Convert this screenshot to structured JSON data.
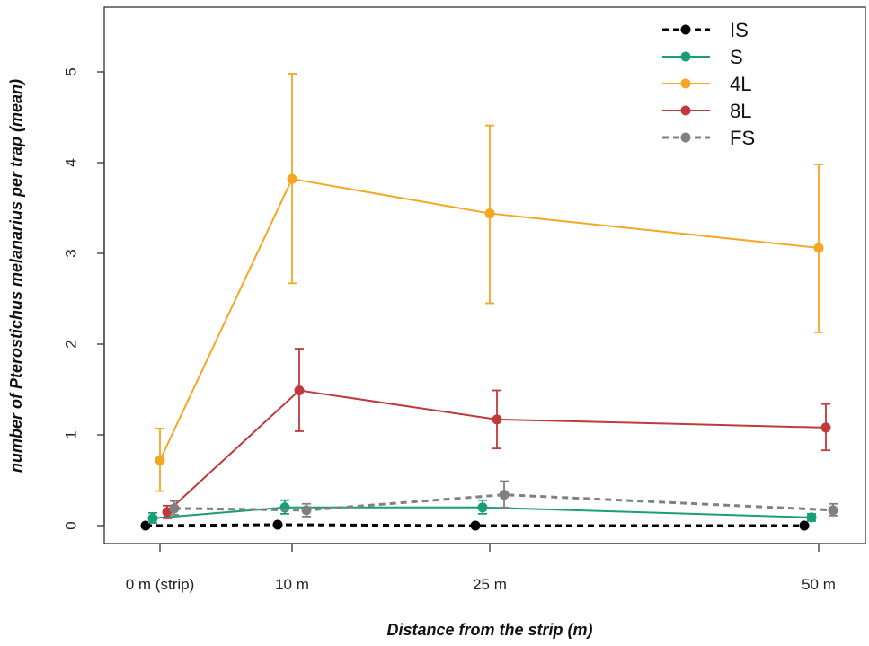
{
  "chart_data": {
    "type": "line",
    "title": "",
    "xlabel": "Distance from the strip (m)",
    "ylabel_parts": {
      "prefix": "number of ",
      "species": "Pterostichus melanarius",
      "suffix": " per trap (mean)"
    },
    "categories": [
      "0 m (strip)",
      "10 m",
      "25 m",
      "50 m"
    ],
    "ylim": [
      0,
      5.7
    ],
    "yticks": [
      0,
      1,
      2,
      3,
      4,
      5
    ],
    "grid": false,
    "legend_position": "top-right",
    "series": [
      {
        "name": "IS",
        "color": "#000000",
        "dashed": true,
        "values": [
          0.0,
          0.01,
          0.0,
          0.0
        ],
        "err_low": [
          null,
          null,
          null,
          null
        ],
        "err_high": [
          null,
          null,
          null,
          null
        ]
      },
      {
        "name": "S",
        "color": "#1a9e77",
        "dashed": false,
        "values": [
          0.08,
          0.2,
          0.2,
          0.09
        ],
        "err_low": [
          0.03,
          0.13,
          0.13,
          0.05
        ],
        "err_high": [
          0.14,
          0.28,
          0.28,
          0.13
        ]
      },
      {
        "name": "4L",
        "color": "#f5a623",
        "dashed": false,
        "values": [
          0.72,
          3.82,
          3.44,
          3.06
        ],
        "err_low": [
          0.38,
          2.67,
          2.45,
          2.13
        ],
        "err_high": [
          1.07,
          4.98,
          4.41,
          3.98
        ]
      },
      {
        "name": "8L",
        "color": "#c0393b",
        "dashed": false,
        "values": [
          0.15,
          1.49,
          1.17,
          1.08
        ],
        "err_low": [
          0.08,
          1.04,
          0.85,
          0.83
        ],
        "err_high": [
          0.22,
          1.95,
          1.49,
          1.34
        ]
      },
      {
        "name": "FS",
        "color": "#808080",
        "dashed": true,
        "values": [
          0.19,
          0.17,
          0.34,
          0.17
        ],
        "err_low": [
          0.12,
          0.1,
          0.2,
          0.11
        ],
        "err_high": [
          0.27,
          0.24,
          0.49,
          0.24
        ]
      }
    ]
  }
}
